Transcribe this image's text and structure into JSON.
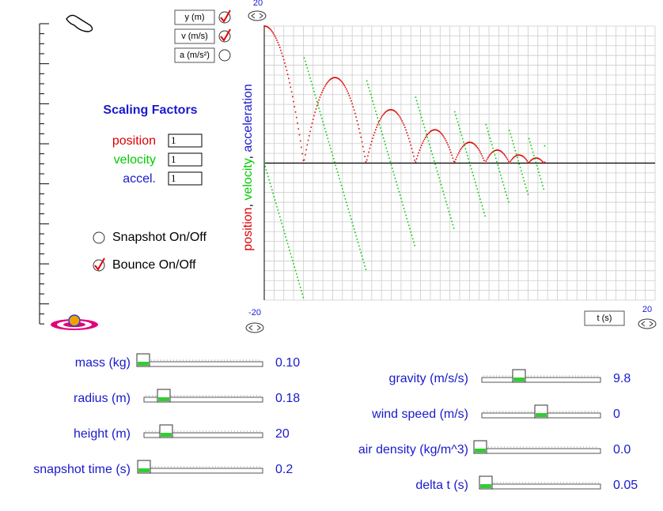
{
  "graph_toggles": [
    {
      "label": "y (m)",
      "checked": true
    },
    {
      "label": "v (m/s)",
      "checked": true
    },
    {
      "label": "a (m/s²)",
      "checked": false
    }
  ],
  "scaling": {
    "title": "Scaling Factors",
    "rows": [
      {
        "label": "position",
        "value": "1"
      },
      {
        "label": "velocity",
        "value": "1"
      },
      {
        "label": "accel.",
        "value": "1"
      }
    ]
  },
  "options": [
    {
      "label": "Snapshot On/Off",
      "checked": false
    },
    {
      "label": "Bounce On/Off",
      "checked": true
    }
  ],
  "graph": {
    "axis_label": [
      "position",
      ", ",
      "velocity",
      ", ",
      "acceleration"
    ],
    "y_max": "20",
    "y_min": "-20",
    "t_max": "20",
    "t_label": "t (s)"
  },
  "sliders_left": [
    {
      "label": "mass (kg)",
      "value": "0.10"
    },
    {
      "label": "radius (m)",
      "value": "0.18"
    },
    {
      "label": "height (m)",
      "value": "20"
    },
    {
      "label": "snapshot time (s)",
      "value": "0.2"
    }
  ],
  "sliders_right": [
    {
      "label": "gravity (m/s/s)",
      "value": "9.8"
    },
    {
      "label": "wind speed (m/s)",
      "value": "0"
    },
    {
      "label": "air density (kg/m^3)",
      "value": "0.0"
    },
    {
      "label": "delta t (s)",
      "value": "0.05"
    }
  ]
}
